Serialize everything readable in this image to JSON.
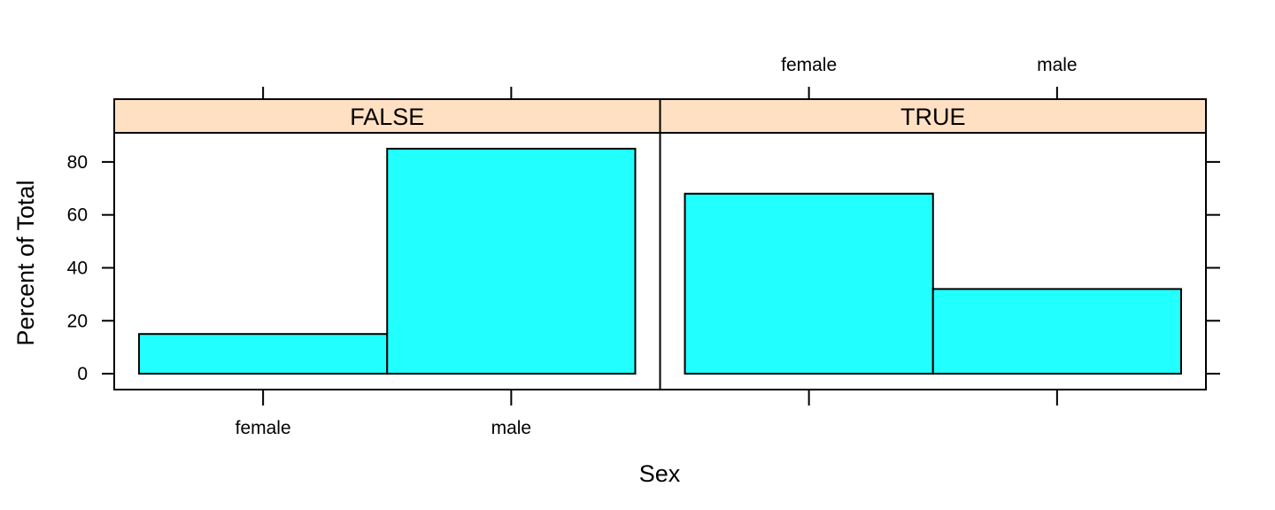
{
  "chart_data": {
    "type": "bar",
    "xlabel": "Sex",
    "ylabel": "Percent of Total",
    "categories": [
      "female",
      "male"
    ],
    "ylim": [
      -6,
      91
    ],
    "yticks": [
      0,
      20,
      40,
      60,
      80
    ],
    "panels": [
      {
        "label": "FALSE",
        "values": [
          15,
          85
        ]
      },
      {
        "label": "TRUE",
        "values": [
          68,
          32
        ]
      }
    ],
    "grid": false,
    "legend": "none",
    "bar_color": "#22ffff",
    "strip_color": "#ffe0c2"
  }
}
